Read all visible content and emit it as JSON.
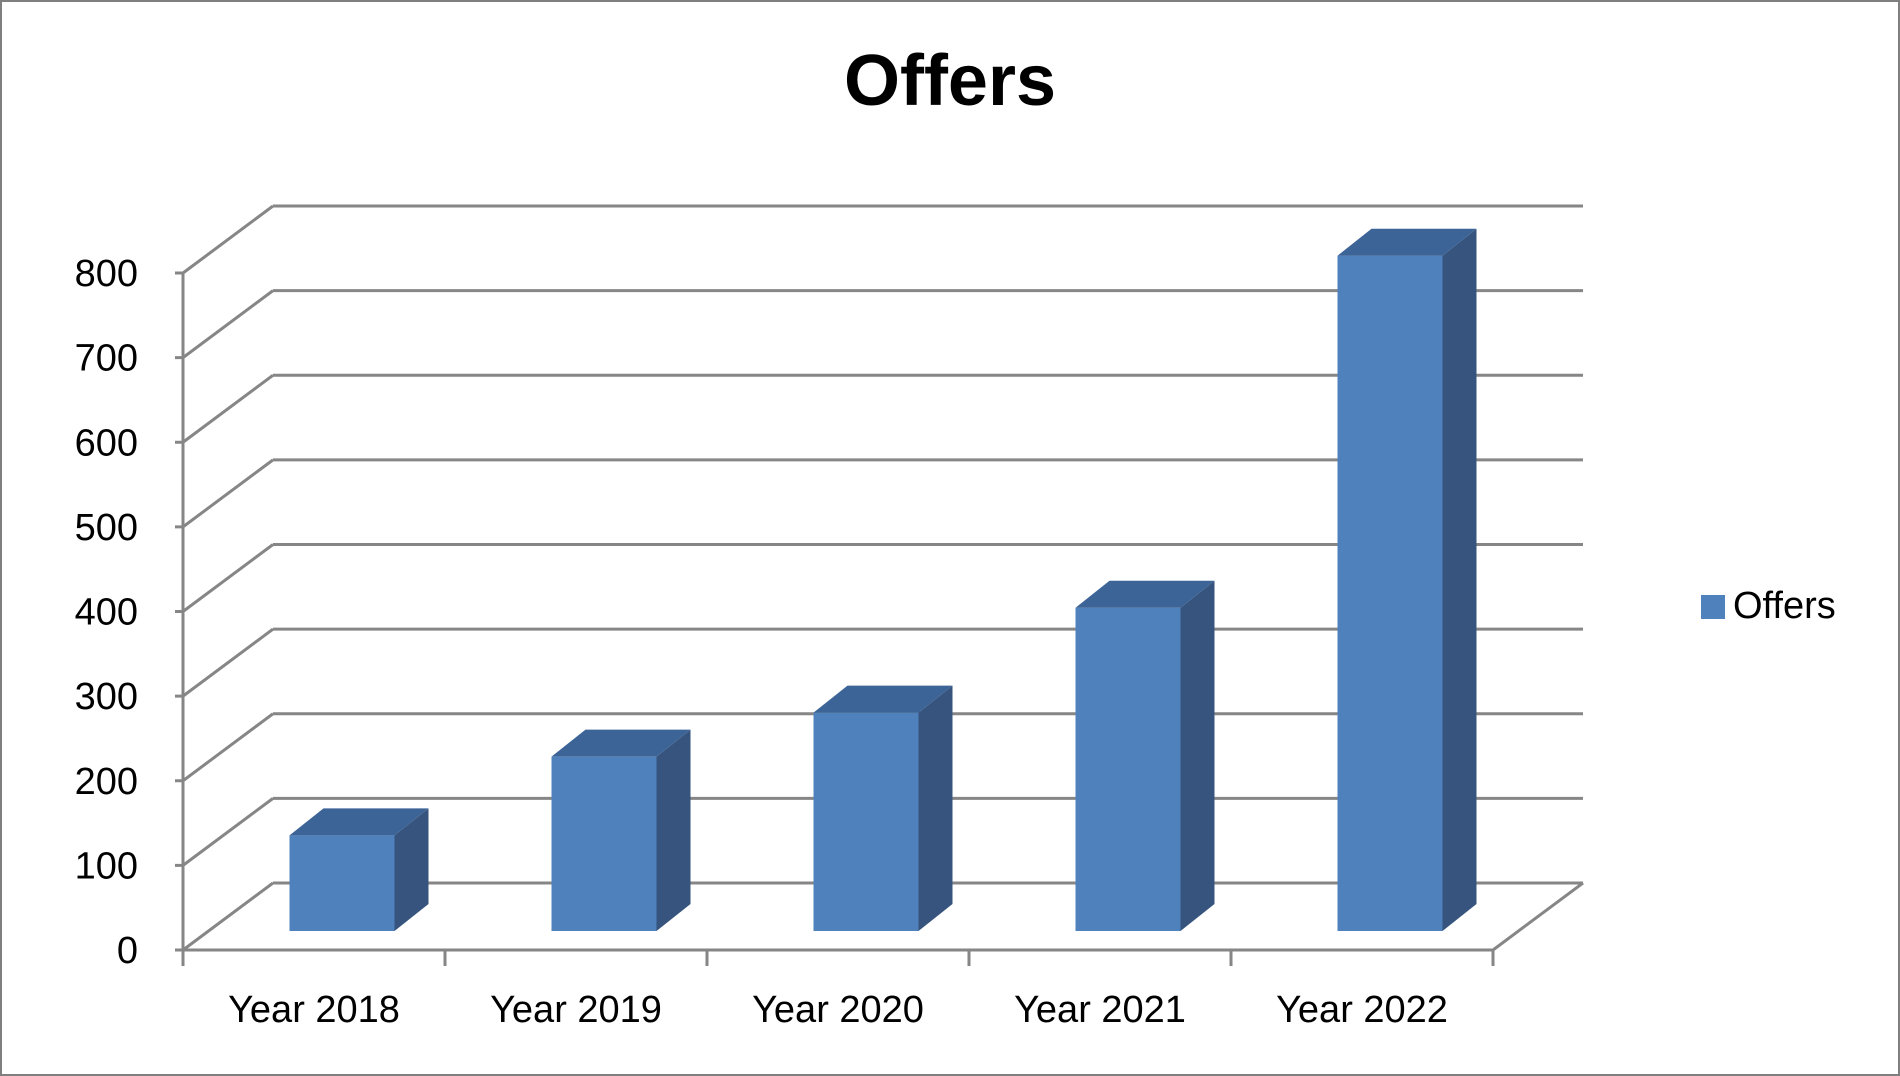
{
  "chart_data": {
    "type": "bar",
    "title": "Offers",
    "categories": [
      "Year 2018",
      "Year 2019",
      "Year 2020",
      "Year 2021",
      "Year 2022"
    ],
    "series": [
      {
        "name": "Offers",
        "values": [
          113,
          206,
          258,
          382,
          798
        ]
      }
    ],
    "ylim": [
      0,
      800
    ],
    "yticks": [
      "0",
      "100",
      "200",
      "300",
      "400",
      "500",
      "600",
      "700",
      "800"
    ],
    "xlabel": "",
    "ylabel": "",
    "grid": true,
    "legend": "right",
    "style": "3d-column",
    "colors": {
      "bar_front": "#4f81bd",
      "bar_side": "#36547d",
      "bar_top": "#3d6497",
      "grid": "#868686"
    }
  }
}
